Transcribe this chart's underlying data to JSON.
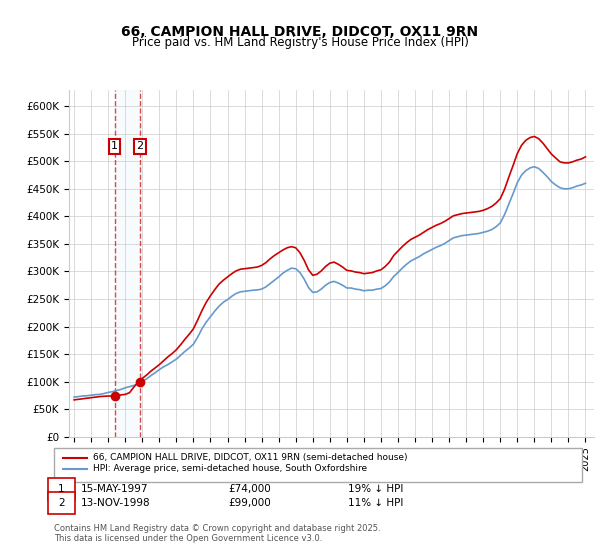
{
  "title": "66, CAMPION HALL DRIVE, DIDCOT, OX11 9RN",
  "subtitle": "Price paid vs. HM Land Registry's House Price Index (HPI)",
  "legend_line1": "66, CAMPION HALL DRIVE, DIDCOT, OX11 9RN (semi-detached house)",
  "legend_line2": "HPI: Average price, semi-detached house, South Oxfordshire",
  "purchase1_date": "15-MAY-1997",
  "purchase1_price": 74000,
  "purchase1_pct": "19% ↓ HPI",
  "purchase1_year": 1997.37,
  "purchase2_date": "13-NOV-1998",
  "purchase2_price": 99000,
  "purchase2_pct": "11% ↓ HPI",
  "purchase2_year": 1998.87,
  "price_color": "#cc0000",
  "hpi_color": "#6699cc",
  "marker_box_color": "#cc0000",
  "copyright_text": "Contains HM Land Registry data © Crown copyright and database right 2025.\nThis data is licensed under the Open Government Licence v3.0.",
  "ylim": [
    0,
    630000
  ],
  "yticks": [
    0,
    50000,
    100000,
    150000,
    200000,
    250000,
    300000,
    350000,
    400000,
    450000,
    500000,
    550000,
    600000
  ],
  "ylabel_format": "£{0}K",
  "background_color": "#ffffff",
  "hpi_years": [
    1995.0,
    1995.25,
    1995.5,
    1995.75,
    1996.0,
    1996.25,
    1996.5,
    1996.75,
    1997.0,
    1997.25,
    1997.5,
    1997.75,
    1998.0,
    1998.25,
    1998.5,
    1998.75,
    1999.0,
    1999.25,
    1999.5,
    1999.75,
    2000.0,
    2000.25,
    2000.5,
    2000.75,
    2001.0,
    2001.25,
    2001.5,
    2001.75,
    2002.0,
    2002.25,
    2002.5,
    2002.75,
    2003.0,
    2003.25,
    2003.5,
    2003.75,
    2004.0,
    2004.25,
    2004.5,
    2004.75,
    2005.0,
    2005.25,
    2005.5,
    2005.75,
    2006.0,
    2006.25,
    2006.5,
    2006.75,
    2007.0,
    2007.25,
    2007.5,
    2007.75,
    2008.0,
    2008.25,
    2008.5,
    2008.75,
    2009.0,
    2009.25,
    2009.5,
    2009.75,
    2010.0,
    2010.25,
    2010.5,
    2010.75,
    2011.0,
    2011.25,
    2011.5,
    2011.75,
    2012.0,
    2012.25,
    2012.5,
    2012.75,
    2013.0,
    2013.25,
    2013.5,
    2013.75,
    2014.0,
    2014.25,
    2014.5,
    2014.75,
    2015.0,
    2015.25,
    2015.5,
    2015.75,
    2016.0,
    2016.25,
    2016.5,
    2016.75,
    2017.0,
    2017.25,
    2017.5,
    2017.75,
    2018.0,
    2018.25,
    2018.5,
    2018.75,
    2019.0,
    2019.25,
    2019.5,
    2019.75,
    2020.0,
    2020.25,
    2020.5,
    2020.75,
    2021.0,
    2021.25,
    2021.5,
    2021.75,
    2022.0,
    2022.25,
    2022.5,
    2022.75,
    2023.0,
    2023.25,
    2023.5,
    2023.75,
    2024.0,
    2024.25,
    2024.5,
    2024.75,
    2025.0
  ],
  "hpi_values": [
    72000,
    73000,
    74000,
    74500,
    75500,
    76500,
    77000,
    78500,
    80500,
    82000,
    84000,
    86000,
    89000,
    91000,
    93000,
    96000,
    100000,
    105000,
    111000,
    116000,
    122000,
    127000,
    131000,
    136000,
    141000,
    148000,
    155000,
    161000,
    168000,
    181000,
    196000,
    208000,
    218000,
    228000,
    237000,
    244000,
    249000,
    255000,
    260000,
    263000,
    264000,
    265000,
    266000,
    266500,
    268000,
    272000,
    278000,
    284000,
    290000,
    297000,
    302000,
    306000,
    305000,
    298000,
    286000,
    271000,
    262000,
    263000,
    268000,
    275000,
    280000,
    282000,
    279000,
    275000,
    270000,
    270000,
    268000,
    267000,
    265000,
    266000,
    266000,
    268000,
    269000,
    274000,
    281000,
    291000,
    298000,
    306000,
    313000,
    319000,
    323000,
    327000,
    332000,
    336000,
    340000,
    344000,
    347000,
    351000,
    356000,
    361000,
    363000,
    365000,
    366000,
    367000,
    368000,
    369000,
    371000,
    373000,
    376000,
    381000,
    388000,
    403000,
    422000,
    441000,
    461000,
    475000,
    483000,
    488000,
    490000,
    487000,
    480000,
    472000,
    463000,
    457000,
    452000,
    450000,
    450000,
    452000,
    455000,
    457000,
    460000
  ],
  "price_years": [
    1995.0,
    1995.25,
    1995.5,
    1995.75,
    1996.0,
    1996.25,
    1996.5,
    1996.75,
    1997.0,
    1997.25,
    1997.5,
    1997.75,
    1998.0,
    1998.25,
    1998.5,
    1998.75,
    1999.0,
    1999.25,
    1999.5,
    1999.75,
    2000.0,
    2000.25,
    2000.5,
    2000.75,
    2001.0,
    2001.25,
    2001.5,
    2001.75,
    2002.0,
    2002.25,
    2002.5,
    2002.75,
    2003.0,
    2003.25,
    2003.5,
    2003.75,
    2004.0,
    2004.25,
    2004.5,
    2004.75,
    2005.0,
    2005.25,
    2005.5,
    2005.75,
    2006.0,
    2006.25,
    2006.5,
    2006.75,
    2007.0,
    2007.25,
    2007.5,
    2007.75,
    2008.0,
    2008.25,
    2008.5,
    2008.75,
    2009.0,
    2009.25,
    2009.5,
    2009.75,
    2010.0,
    2010.25,
    2010.5,
    2010.75,
    2011.0,
    2011.25,
    2011.5,
    2011.75,
    2012.0,
    2012.25,
    2012.5,
    2012.75,
    2013.0,
    2013.25,
    2013.5,
    2013.75,
    2014.0,
    2014.25,
    2014.5,
    2014.75,
    2015.0,
    2015.25,
    2015.5,
    2015.75,
    2016.0,
    2016.25,
    2016.5,
    2016.75,
    2017.0,
    2017.25,
    2017.5,
    2017.75,
    2018.0,
    2018.25,
    2018.5,
    2018.75,
    2019.0,
    2019.25,
    2019.5,
    2019.75,
    2020.0,
    2020.25,
    2020.5,
    2020.75,
    2021.0,
    2021.25,
    2021.5,
    2021.75,
    2022.0,
    2022.25,
    2022.5,
    2022.75,
    2023.0,
    2023.25,
    2023.5,
    2023.75,
    2024.0,
    2024.25,
    2024.5,
    2024.75,
    2025.0
  ],
  "price_values": [
    67000,
    68000,
    69000,
    70000,
    71000,
    72000,
    73000,
    73500,
    74000,
    74000,
    75000,
    76000,
    77000,
    80000,
    90000,
    99000,
    106000,
    112000,
    119000,
    125000,
    131000,
    138000,
    145000,
    151000,
    158000,
    167000,
    177000,
    186000,
    196000,
    212000,
    229000,
    244000,
    256000,
    267000,
    277000,
    284000,
    290000,
    296000,
    301000,
    304000,
    305000,
    306000,
    307000,
    308000,
    311000,
    316000,
    323000,
    329000,
    334000,
    339000,
    343000,
    345000,
    343000,
    334000,
    320000,
    303000,
    293000,
    295000,
    301000,
    309000,
    315000,
    317000,
    313000,
    308000,
    302000,
    301000,
    299000,
    298000,
    296000,
    297000,
    298000,
    301000,
    303000,
    309000,
    317000,
    329000,
    337000,
    345000,
    352000,
    358000,
    362000,
    366000,
    371000,
    376000,
    380000,
    384000,
    387000,
    391000,
    396000,
    401000,
    403000,
    405000,
    406000,
    407000,
    408000,
    409000,
    411000,
    414000,
    418000,
    424000,
    432000,
    449000,
    471000,
    492000,
    514000,
    529000,
    538000,
    543000,
    545000,
    541000,
    533000,
    523000,
    513000,
    506000,
    499000,
    497000,
    497000,
    499000,
    502000,
    504000,
    508000
  ],
  "xticks": [
    1995,
    1996,
    1997,
    1998,
    1999,
    2000,
    2001,
    2002,
    2003,
    2004,
    2005,
    2006,
    2007,
    2008,
    2009,
    2010,
    2011,
    2012,
    2013,
    2014,
    2015,
    2016,
    2017,
    2018,
    2019,
    2020,
    2021,
    2022,
    2023,
    2024,
    2025
  ],
  "xlim": [
    1994.7,
    2025.5
  ]
}
